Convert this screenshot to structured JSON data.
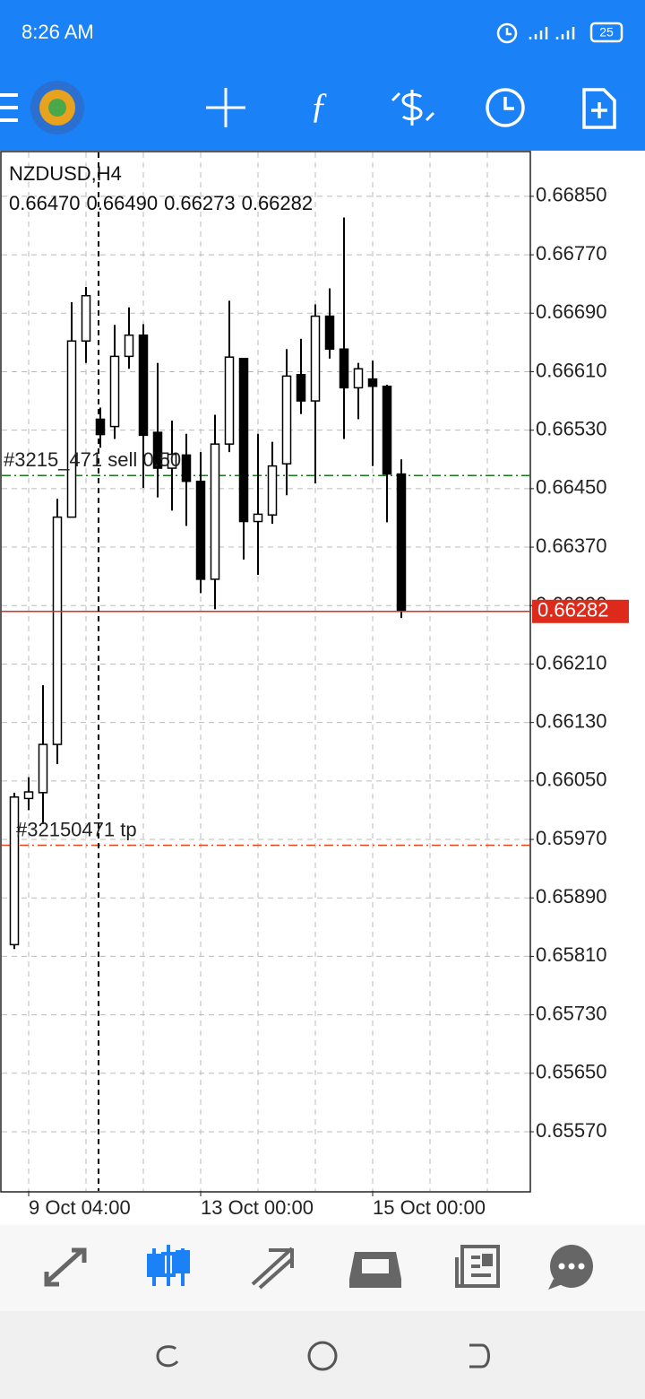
{
  "status_bar": {
    "time": "8:26 AM",
    "battery": "25"
  },
  "chart_data": {
    "type": "candlestick",
    "title": "NZDUSD,H4",
    "info": [
      {
        "value": 0.6647,
        "label": "0.66470"
      },
      {
        "value": 0.6649,
        "label": "0.66490"
      },
      {
        "value": 0.66273,
        "label": "0.66273"
      },
      {
        "value": 0.66282,
        "label": "0.66282"
      }
    ],
    "categories": [
      null,
      "9 Oct 04:00",
      null,
      null,
      null,
      null,
      null,
      null,
      null,
      null,
      null,
      null,
      null,
      "13 Oct 00:00",
      null,
      null,
      null,
      null,
      null,
      null,
      null,
      null,
      null,
      null,
      null,
      "15 Oct 00:00",
      null,
      null
    ],
    "open": [
      0.65826,
      0.66026,
      0.66034,
      0.661,
      0.66411,
      0.66652,
      0.66545,
      0.66535,
      0.66631,
      0.6666,
      0.66527,
      0.66478,
      0.66496,
      0.6646,
      0.66326,
      0.66511,
      0.66628,
      0.66405,
      0.66414,
      0.66484,
      0.66606,
      0.6657,
      0.66686,
      0.66641,
      0.66588,
      0.666,
      0.6659,
      0.6647
    ],
    "high": [
      0.66034,
      0.66055,
      0.66181,
      0.66436,
      0.66705,
      0.66726,
      0.66561,
      0.66674,
      0.66698,
      0.66675,
      0.66622,
      0.66543,
      0.66525,
      0.665,
      0.66551,
      0.66707,
      0.66628,
      0.66525,
      0.66514,
      0.66641,
      0.66655,
      0.66702,
      0.66724,
      0.66821,
      0.66622,
      0.66625,
      0.66592,
      0.6649
    ],
    "low": [
      0.6582,
      0.6601,
      0.65991,
      0.66073,
      0.66411,
      0.66622,
      0.66506,
      0.66518,
      0.66614,
      0.66451,
      0.66438,
      0.6642,
      0.66399,
      0.66307,
      0.66285,
      0.665,
      0.66353,
      0.66332,
      0.66402,
      0.66441,
      0.66552,
      0.66457,
      0.66628,
      0.66518,
      0.66545,
      0.66481,
      0.66404,
      0.66273
    ],
    "close": [
      0.66028,
      0.66035,
      0.661,
      0.66411,
      0.66652,
      0.66714,
      0.66524,
      0.66631,
      0.6666,
      0.66523,
      0.66478,
      0.66497,
      0.6646,
      0.66326,
      0.66511,
      0.6663,
      0.66405,
      0.66415,
      0.66481,
      0.66604,
      0.6657,
      0.66686,
      0.66641,
      0.66588,
      0.66614,
      0.6659,
      0.6647,
      0.66282
    ],
    "up_color": "#ffffff",
    "down_color": "#000000",
    "ylim": [
      0.65489,
      0.6691
    ],
    "yticks": [
      {
        "value": 0.6685,
        "label": "0.66850"
      },
      {
        "value": 0.6677,
        "label": "0.66770"
      },
      {
        "value": 0.6669,
        "label": "0.66690"
      },
      {
        "value": 0.6661,
        "label": "0.66610"
      },
      {
        "value": 0.6653,
        "label": "0.66530"
      },
      {
        "value": 0.6645,
        "label": "0.66450"
      },
      {
        "value": 0.6637,
        "label": "0.66370"
      },
      {
        "value": 0.6629,
        "label": "0.66290"
      },
      {
        "value": 0.6621,
        "label": "0.66210"
      },
      {
        "value": 0.6613,
        "label": "0.66130"
      },
      {
        "value": 0.6605,
        "label": "0.66050"
      },
      {
        "value": 0.6597,
        "label": "0.65970"
      },
      {
        "value": 0.6589,
        "label": "0.65890"
      },
      {
        "value": 0.6581,
        "label": "0.65810"
      },
      {
        "value": 0.6573,
        "label": "0.65730"
      },
      {
        "value": 0.6565,
        "label": "0.65650"
      },
      {
        "value": 0.6557,
        "label": "0.65570"
      }
    ],
    "grid": true,
    "levels": [
      {
        "label": "#3215_471 sell 0.50",
        "value": 0.66468,
        "color": "#1a7a1a"
      },
      {
        "label": "#32150471 tp",
        "value": 0.65962,
        "color": "#e8461b"
      }
    ],
    "bid": {
      "value": 0.66282,
      "color": "#dd2a1b"
    }
  }
}
